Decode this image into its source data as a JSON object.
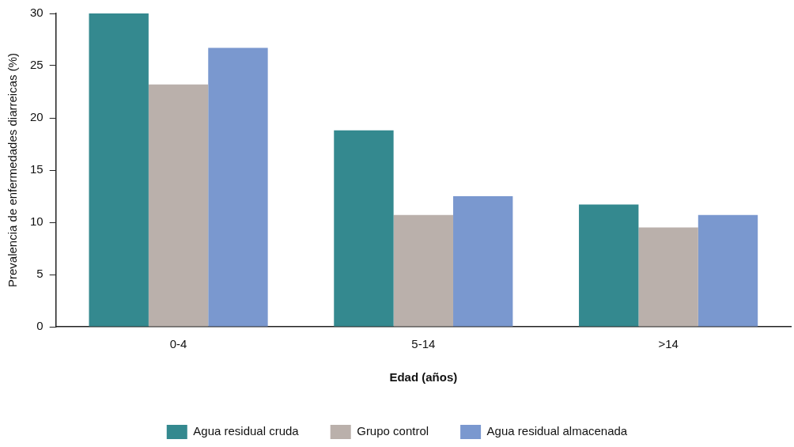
{
  "chart_data": {
    "type": "bar",
    "xlabel": "Edad (años)",
    "ylabel": "Prevalencia de enfermedades diarreicas (%)",
    "categories": [
      "0-4",
      "5-14",
      ">14"
    ],
    "series": [
      {
        "name": "Agua residual cruda",
        "color": "#34898f",
        "values": [
          30,
          18.8,
          11.7
        ]
      },
      {
        "name": "Grupo control",
        "color": "#bab0ab",
        "values": [
          23.2,
          10.7,
          9.5
        ]
      },
      {
        "name": "Agua residual almacenada",
        "color": "#7a98cf",
        "values": [
          26.7,
          12.5,
          10.7
        ]
      }
    ],
    "ylim": [
      0,
      30
    ],
    "yticks": [
      0,
      5,
      10,
      15,
      20,
      25,
      30
    ],
    "grid": false,
    "legend": "bottom"
  }
}
